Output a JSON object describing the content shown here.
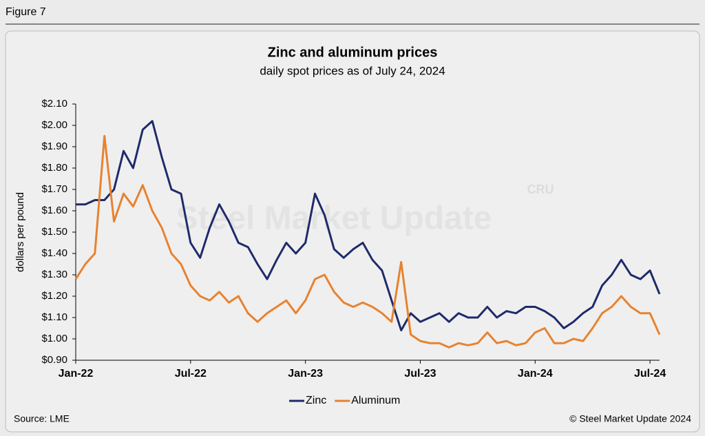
{
  "figure_label": "Figure 7",
  "source": "Source: LME",
  "copyright": "© Steel Market Update 2024",
  "watermark": "Steel Market Update",
  "watermark_logo": "CRU",
  "chart_data": {
    "type": "line",
    "title": "Zinc and aluminum prices",
    "subtitle": "daily spot prices as of July 24, 2024",
    "y_label": "dollars per pound",
    "categories": [
      "Jan-22",
      null,
      null,
      null,
      null,
      null,
      null,
      null,
      null,
      null,
      null,
      null,
      "Jul-22",
      null,
      null,
      null,
      null,
      null,
      null,
      null,
      null,
      null,
      null,
      null,
      "Jan-23",
      null,
      null,
      null,
      null,
      null,
      null,
      null,
      null,
      null,
      null,
      null,
      "Jul-23",
      null,
      null,
      null,
      null,
      null,
      null,
      null,
      null,
      null,
      null,
      null,
      "Jan-24",
      null,
      null,
      null,
      null,
      null,
      null,
      null,
      null,
      null,
      null,
      null,
      "Jul-24",
      null
    ],
    "series": [
      {
        "name": "Zinc",
        "color": "#1f2a6b",
        "values": [
          1.63,
          1.63,
          1.65,
          1.65,
          1.7,
          1.88,
          1.8,
          1.98,
          2.02,
          1.85,
          1.7,
          1.68,
          1.45,
          1.38,
          1.52,
          1.63,
          1.55,
          1.45,
          1.43,
          1.35,
          1.28,
          1.37,
          1.45,
          1.4,
          1.45,
          1.68,
          1.58,
          1.42,
          1.38,
          1.42,
          1.45,
          1.37,
          1.32,
          1.18,
          1.04,
          1.12,
          1.08,
          1.1,
          1.12,
          1.08,
          1.12,
          1.1,
          1.1,
          1.15,
          1.1,
          1.13,
          1.12,
          1.15,
          1.15,
          1.13,
          1.1,
          1.05,
          1.08,
          1.12,
          1.15,
          1.25,
          1.3,
          1.37,
          1.3,
          1.28,
          1.32,
          1.21
        ]
      },
      {
        "name": "Aluminum",
        "color": "#e8822f",
        "values": [
          1.28,
          1.35,
          1.4,
          1.95,
          1.55,
          1.68,
          1.62,
          1.72,
          1.6,
          1.52,
          1.4,
          1.35,
          1.25,
          1.2,
          1.18,
          1.22,
          1.17,
          1.2,
          1.12,
          1.08,
          1.12,
          1.15,
          1.18,
          1.12,
          1.18,
          1.28,
          1.3,
          1.22,
          1.17,
          1.15,
          1.17,
          1.15,
          1.12,
          1.08,
          1.36,
          1.02,
          0.99,
          0.98,
          0.98,
          0.96,
          0.98,
          0.97,
          0.98,
          1.03,
          0.98,
          0.99,
          0.97,
          0.98,
          1.03,
          1.05,
          0.98,
          0.98,
          1.0,
          0.99,
          1.05,
          1.12,
          1.15,
          1.2,
          1.15,
          1.12,
          1.12,
          1.02
        ]
      }
    ],
    "ylim": [
      0.9,
      2.1
    ],
    "yticks": [
      {
        "value": 0.9,
        "label": "$0.90"
      },
      {
        "value": 1.0,
        "label": "$1.00"
      },
      {
        "value": 1.1,
        "label": "$1.10"
      },
      {
        "value": 1.2,
        "label": "$1.20"
      },
      {
        "value": 1.3,
        "label": "$1.30"
      },
      {
        "value": 1.4,
        "label": "$1.40"
      },
      {
        "value": 1.5,
        "label": "$1.50"
      },
      {
        "value": 1.6,
        "label": "$1.60"
      },
      {
        "value": 1.7,
        "label": "$1.70"
      },
      {
        "value": 1.8,
        "label": "$1.80"
      },
      {
        "value": 1.9,
        "label": "$1.90"
      },
      {
        "value": 2.0,
        "label": "$2.00"
      },
      {
        "value": 2.1,
        "label": "$2.10"
      }
    ],
    "grid": false,
    "legend": "bottom"
  }
}
